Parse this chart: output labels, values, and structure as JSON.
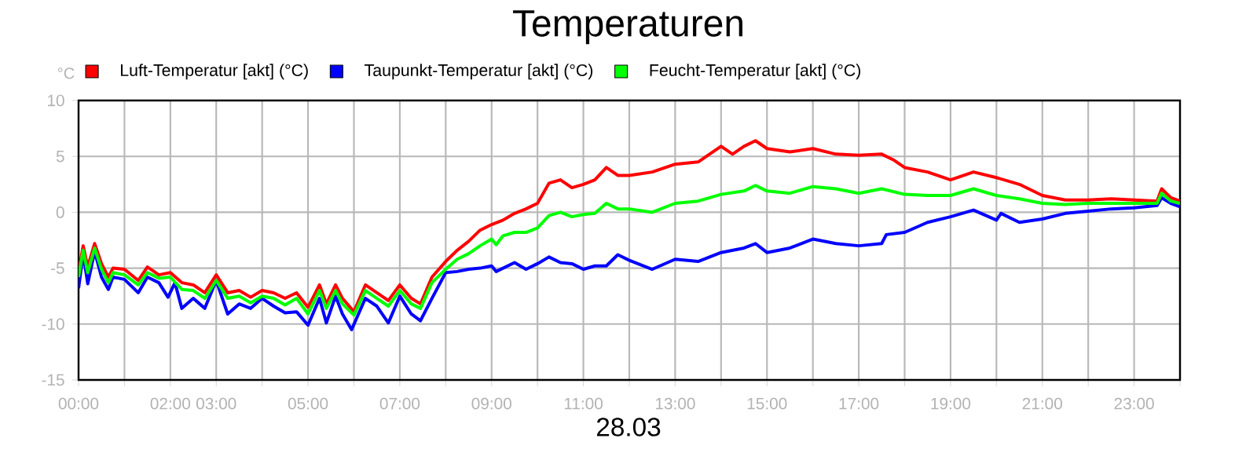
{
  "chart_data": {
    "type": "line",
    "title": "Temperaturen",
    "xlabel": "28.03",
    "ylabel": "°C",
    "xlim": [
      0,
      24
    ],
    "ylim": [
      -15,
      10
    ],
    "xticks": [
      {
        "value": 0,
        "label": "00:00"
      },
      {
        "value": 1,
        "label": null
      },
      {
        "value": 2,
        "label": "02:00"
      },
      {
        "value": 3,
        "label": "03:00"
      },
      {
        "value": 4,
        "label": null
      },
      {
        "value": 5,
        "label": "05:00"
      },
      {
        "value": 6,
        "label": null
      },
      {
        "value": 7,
        "label": "07:00"
      },
      {
        "value": 8,
        "label": null
      },
      {
        "value": 9,
        "label": "09:00"
      },
      {
        "value": 10,
        "label": null
      },
      {
        "value": 11,
        "label": "11:00"
      },
      {
        "value": 12,
        "label": null
      },
      {
        "value": 13,
        "label": "13:00"
      },
      {
        "value": 14,
        "label": null
      },
      {
        "value": 15,
        "label": "15:00"
      },
      {
        "value": 16,
        "label": null
      },
      {
        "value": 17,
        "label": "17:00"
      },
      {
        "value": 18,
        "label": null
      },
      {
        "value": 19,
        "label": "19:00"
      },
      {
        "value": 20,
        "label": null
      },
      {
        "value": 21,
        "label": "21:00"
      },
      {
        "value": 22,
        "label": null
      },
      {
        "value": 23,
        "label": "23:00"
      },
      {
        "value": 24,
        "label": null
      }
    ],
    "yticks": [
      -15,
      -10,
      -5,
      0,
      5,
      10
    ],
    "grid": true,
    "legend": "top left",
    "series": [
      {
        "name": "Luft-Temperatur [akt] (°C)",
        "color": "#ff0000",
        "x": [
          0,
          0.1,
          0.2,
          0.35,
          0.5,
          0.65,
          0.75,
          1.0,
          1.3,
          1.5,
          1.75,
          2.0,
          2.25,
          2.5,
          2.75,
          3.0,
          3.25,
          3.5,
          3.75,
          4.0,
          4.25,
          4.5,
          4.75,
          5.0,
          5.25,
          5.4,
          5.6,
          5.75,
          6.0,
          6.25,
          6.5,
          6.75,
          7.0,
          7.25,
          7.45,
          7.7,
          8.0,
          8.25,
          8.5,
          8.75,
          9.0,
          9.25,
          9.5,
          9.75,
          10.0,
          10.25,
          10.5,
          10.75,
          11.0,
          11.25,
          11.5,
          11.75,
          12.0,
          12.5,
          13.0,
          13.5,
          13.75,
          14.0,
          14.25,
          14.5,
          14.75,
          15.0,
          15.5,
          16.0,
          16.5,
          17.0,
          17.5,
          17.75,
          18.0,
          18.5,
          19.0,
          19.5,
          20.0,
          20.5,
          21.0,
          21.5,
          22.0,
          22.5,
          23.0,
          23.5,
          23.6,
          23.8,
          24.0
        ],
        "values": [
          -5.4,
          -3.0,
          -4.9,
          -2.8,
          -4.6,
          -5.8,
          -5.0,
          -5.1,
          -6.1,
          -4.9,
          -5.6,
          -5.4,
          -6.3,
          -6.5,
          -7.2,
          -5.6,
          -7.2,
          -7.0,
          -7.6,
          -7.0,
          -7.2,
          -7.7,
          -7.2,
          -8.5,
          -6.5,
          -8.2,
          -6.5,
          -7.7,
          -8.9,
          -6.5,
          -7.2,
          -7.9,
          -6.5,
          -7.7,
          -8.2,
          -5.8,
          -4.4,
          -3.4,
          -2.6,
          -1.6,
          -1.1,
          -0.7,
          -0.1,
          0.3,
          0.8,
          2.6,
          2.9,
          2.2,
          2.5,
          2.9,
          4.0,
          3.3,
          3.3,
          3.6,
          4.3,
          4.5,
          5.2,
          5.9,
          5.2,
          5.9,
          6.4,
          5.7,
          5.4,
          5.7,
          5.2,
          5.1,
          5.2,
          4.7,
          4.0,
          3.6,
          2.9,
          3.6,
          3.1,
          2.5,
          1.5,
          1.1,
          1.1,
          1.2,
          1.1,
          1.0,
          2.1,
          1.3,
          1.0
        ]
      },
      {
        "name": "Taupunkt-Temperatur [akt] (°C)",
        "color": "#0000ff",
        "x": [
          0,
          0.1,
          0.2,
          0.35,
          0.5,
          0.65,
          0.75,
          1.0,
          1.3,
          1.5,
          1.75,
          1.95,
          2.1,
          2.25,
          2.5,
          2.75,
          3.0,
          3.25,
          3.5,
          3.75,
          4.0,
          4.25,
          4.5,
          4.75,
          5.0,
          5.25,
          5.4,
          5.6,
          5.75,
          5.95,
          6.25,
          6.5,
          6.75,
          7.0,
          7.25,
          7.45,
          7.7,
          8.0,
          8.25,
          8.5,
          8.75,
          9.0,
          9.1,
          9.5,
          9.75,
          10.0,
          10.25,
          10.5,
          10.75,
          11.0,
          11.25,
          11.5,
          11.75,
          12.0,
          12.5,
          13.0,
          13.5,
          14.0,
          14.5,
          14.75,
          15.0,
          15.5,
          16.0,
          16.5,
          17.0,
          17.5,
          17.6,
          18.0,
          18.5,
          19.0,
          19.5,
          20.0,
          20.1,
          20.5,
          21.0,
          21.5,
          22.0,
          22.5,
          23.0,
          23.5,
          23.6,
          23.8,
          24.0
        ],
        "values": [
          -6.8,
          -3.7,
          -6.4,
          -3.5,
          -5.8,
          -6.9,
          -5.8,
          -6.0,
          -7.2,
          -5.8,
          -6.3,
          -7.6,
          -6.3,
          -8.6,
          -7.7,
          -8.6,
          -6.1,
          -9.1,
          -8.2,
          -8.6,
          -7.7,
          -8.4,
          -9.0,
          -8.9,
          -10.1,
          -7.7,
          -9.9,
          -7.5,
          -9.1,
          -10.5,
          -7.7,
          -8.4,
          -9.9,
          -7.5,
          -9.1,
          -9.7,
          -7.7,
          -5.4,
          -5.3,
          -5.1,
          -5.0,
          -4.8,
          -5.3,
          -4.5,
          -5.1,
          -4.6,
          -4.0,
          -4.5,
          -4.6,
          -5.1,
          -4.8,
          -4.8,
          -3.8,
          -4.3,
          -5.1,
          -4.2,
          -4.4,
          -3.6,
          -3.2,
          -2.8,
          -3.6,
          -3.2,
          -2.4,
          -2.8,
          -3.0,
          -2.8,
          -2.0,
          -1.8,
          -0.9,
          -0.4,
          0.2,
          -0.7,
          -0.1,
          -0.9,
          -0.6,
          -0.1,
          0.1,
          0.3,
          0.4,
          0.6,
          1.3,
          0.8,
          0.5
        ]
      },
      {
        "name": "Feucht-Temperatur [akt] (°C)",
        "color": "#00ff00",
        "x": [
          0,
          0.1,
          0.2,
          0.35,
          0.5,
          0.65,
          0.75,
          1.0,
          1.3,
          1.5,
          1.75,
          2.0,
          2.25,
          2.5,
          2.75,
          3.0,
          3.25,
          3.5,
          3.75,
          4.0,
          4.25,
          4.5,
          4.75,
          5.0,
          5.25,
          5.4,
          5.6,
          5.75,
          6.0,
          6.25,
          6.5,
          6.75,
          7.0,
          7.25,
          7.45,
          7.7,
          8.0,
          8.25,
          8.5,
          8.75,
          9.0,
          9.1,
          9.25,
          9.5,
          9.75,
          10.0,
          10.25,
          10.5,
          10.75,
          11.0,
          11.25,
          11.5,
          11.75,
          12.0,
          12.5,
          13.0,
          13.5,
          14.0,
          14.5,
          14.75,
          15.0,
          15.5,
          16.0,
          16.5,
          17.0,
          17.5,
          18.0,
          18.5,
          19.0,
          19.5,
          20.0,
          20.5,
          21.0,
          21.5,
          22.0,
          22.5,
          23.0,
          23.5,
          23.6,
          23.8,
          24.0
        ],
        "values": [
          -5.8,
          -3.4,
          -5.4,
          -3.2,
          -5.1,
          -6.3,
          -5.4,
          -5.6,
          -6.5,
          -5.4,
          -5.9,
          -5.8,
          -6.9,
          -7.0,
          -7.7,
          -6.1,
          -7.7,
          -7.5,
          -8.1,
          -7.5,
          -7.7,
          -8.3,
          -7.7,
          -9.1,
          -7.0,
          -8.6,
          -7.0,
          -8.2,
          -9.2,
          -7.0,
          -7.7,
          -8.4,
          -7.0,
          -8.2,
          -8.6,
          -6.3,
          -5.1,
          -4.2,
          -3.7,
          -3.0,
          -2.4,
          -2.9,
          -2.1,
          -1.8,
          -1.8,
          -1.4,
          -0.3,
          0.0,
          -0.4,
          -0.2,
          -0.1,
          0.8,
          0.3,
          0.3,
          0.0,
          0.8,
          1.0,
          1.6,
          1.9,
          2.4,
          1.9,
          1.7,
          2.3,
          2.1,
          1.7,
          2.1,
          1.6,
          1.5,
          1.5,
          2.1,
          1.5,
          1.2,
          0.8,
          0.7,
          0.8,
          0.8,
          0.8,
          0.8,
          1.7,
          1.0,
          0.8
        ]
      }
    ]
  }
}
